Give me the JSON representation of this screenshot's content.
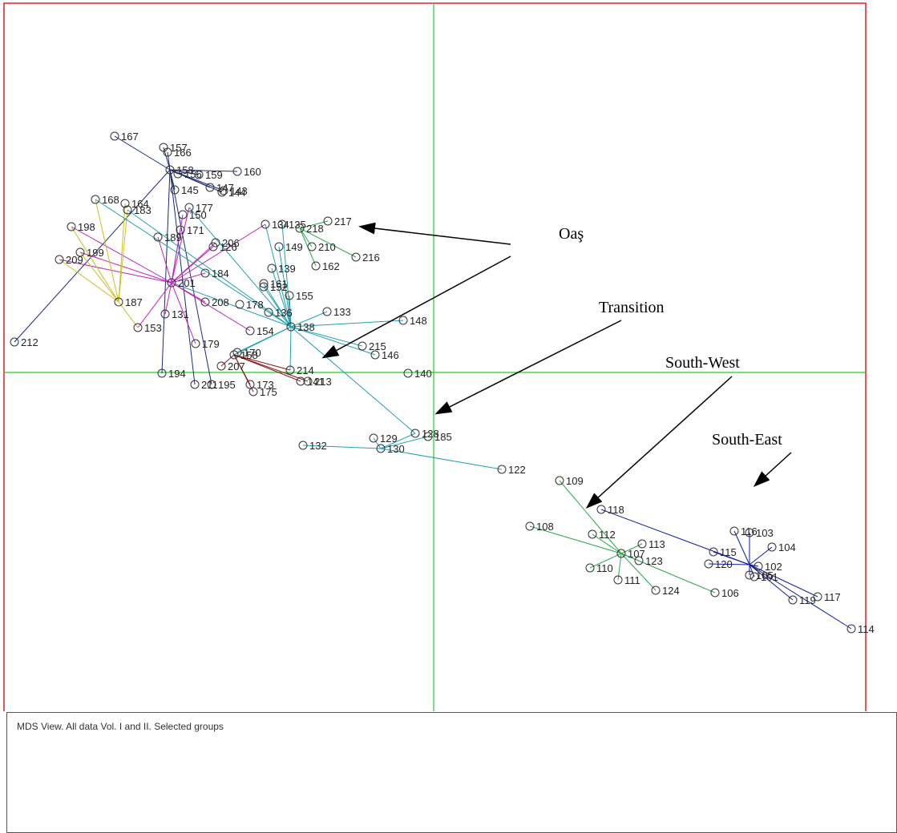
{
  "caption": "MDS View. All data Vol. I and II. Selected groups",
  "colors": {
    "frame": "#e02020",
    "axes": "#22cc22",
    "label": "#222222",
    "marker": "#333333"
  },
  "annotations": [
    {
      "text": "Oaş",
      "points_to": [
        "217",
        "214"
      ]
    },
    {
      "text": "Transition",
      "points_to": [
        "128"
      ]
    },
    {
      "text": "South-West",
      "points_to": [
        "109"
      ]
    },
    {
      "text": "South-East",
      "points_to": [
        "104"
      ]
    }
  ],
  "chart_data": {
    "type": "scatter",
    "title": "",
    "xlabel": "",
    "ylabel": "",
    "xlim": [
      -537,
      540
    ],
    "ylim": [
      -445,
      461
    ],
    "axes_lines": "x=0 and y=0 (green)",
    "grid": false,
    "points": [
      {
        "id": "167",
        "x": -398,
        "y": 295
      },
      {
        "id": "157",
        "x": -337,
        "y": 281
      },
      {
        "id": "166",
        "x": -332,
        "y": 275
      },
      {
        "id": "158",
        "x": -329,
        "y": 253
      },
      {
        "id": "156",
        "x": -319,
        "y": 248
      },
      {
        "id": "159",
        "x": -293,
        "y": 247
      },
      {
        "id": "160",
        "x": -245,
        "y": 251
      },
      {
        "id": "147",
        "x": -279,
        "y": 231
      },
      {
        "id": "143",
        "x": -262,
        "y": 227
      },
      {
        "id": "144",
        "x": -264,
        "y": 225
      },
      {
        "id": "145",
        "x": -323,
        "y": 228
      },
      {
        "id": "177",
        "x": -305,
        "y": 206
      },
      {
        "id": "150",
        "x": -313,
        "y": 197
      },
      {
        "id": "171",
        "x": -316,
        "y": 178
      },
      {
        "id": "168",
        "x": -422,
        "y": 216
      },
      {
        "id": "164",
        "x": -385,
        "y": 211
      },
      {
        "id": "183",
        "x": -382,
        "y": 203
      },
      {
        "id": "198",
        "x": -452,
        "y": 182
      },
      {
        "id": "199",
        "x": -441,
        "y": 150
      },
      {
        "id": "209",
        "x": -467,
        "y": 141
      },
      {
        "id": "189",
        "x": -344,
        "y": 169
      },
      {
        "id": "206",
        "x": -272,
        "y": 162
      },
      {
        "id": "126",
        "x": -275,
        "y": 157
      },
      {
        "id": "201",
        "x": -327,
        "y": 112
      },
      {
        "id": "184",
        "x": -285,
        "y": 124
      },
      {
        "id": "187",
        "x": -393,
        "y": 88
      },
      {
        "id": "131",
        "x": -335,
        "y": 73
      },
      {
        "id": "208",
        "x": -285,
        "y": 88
      },
      {
        "id": "178",
        "x": -242,
        "y": 85
      },
      {
        "id": "154",
        "x": -229,
        "y": 52
      },
      {
        "id": "153",
        "x": -369,
        "y": 56
      },
      {
        "id": "179",
        "x": -297,
        "y": 36
      },
      {
        "id": "170",
        "x": -245,
        "y": 25
      },
      {
        "id": "158b",
        "x": -249,
        "y": 22
      },
      {
        "id": "207",
        "x": -265,
        "y": 8
      },
      {
        "id": "212",
        "x": -523,
        "y": 38
      },
      {
        "id": "194",
        "x": -339,
        "y": -1
      },
      {
        "id": "211",
        "x": -298,
        "y": -15
      },
      {
        "id": "195",
        "x": -277,
        "y": -15
      },
      {
        "id": "173",
        "x": -229,
        "y": -15
      },
      {
        "id": "175",
        "x": -225,
        "y": -24
      },
      {
        "id": "214",
        "x": -179,
        "y": 3
      },
      {
        "id": "141",
        "x": -166,
        "y": -11
      },
      {
        "id": "213",
        "x": -157,
        "y": -11
      },
      {
        "id": "134",
        "x": -210,
        "y": 185
      },
      {
        "id": "135",
        "x": -189,
        "y": 185
      },
      {
        "id": "218",
        "x": -167,
        "y": 180
      },
      {
        "id": "217",
        "x": -132,
        "y": 189
      },
      {
        "id": "149",
        "x": -193,
        "y": 157
      },
      {
        "id": "210",
        "x": -152,
        "y": 157
      },
      {
        "id": "162",
        "x": -147,
        "y": 133
      },
      {
        "id": "216",
        "x": -97,
        "y": 144
      },
      {
        "id": "139",
        "x": -202,
        "y": 130
      },
      {
        "id": "161",
        "x": -212,
        "y": 111
      },
      {
        "id": "152",
        "x": -212,
        "y": 107
      },
      {
        "id": "155",
        "x": -180,
        "y": 96
      },
      {
        "id": "133",
        "x": -133,
        "y": 76
      },
      {
        "id": "136",
        "x": -206,
        "y": 75
      },
      {
        "id": "138",
        "x": -178,
        "y": 57
      },
      {
        "id": "148",
        "x": -38,
        "y": 65
      },
      {
        "id": "215",
        "x": -89,
        "y": 33
      },
      {
        "id": "146",
        "x": -73,
        "y": 22
      },
      {
        "id": "140",
        "x": -32,
        "y": -1
      },
      {
        "id": "128",
        "x": -23,
        "y": -76
      },
      {
        "id": "185",
        "x": -7,
        "y": -80
      },
      {
        "id": "132",
        "x": -163,
        "y": -91
      },
      {
        "id": "129",
        "x": -75,
        "y": -82
      },
      {
        "id": "130",
        "x": -66,
        "y": -95
      },
      {
        "id": "122",
        "x": 85,
        "y": -121
      },
      {
        "id": "109",
        "x": 157,
        "y": -135
      },
      {
        "id": "118",
        "x": 209,
        "y": -171
      },
      {
        "id": "108",
        "x": 120,
        "y": -192
      },
      {
        "id": "112",
        "x": 198,
        "y": -202
      },
      {
        "id": "113",
        "x": 260,
        "y": -214
      },
      {
        "id": "107",
        "x": 234,
        "y": -226
      },
      {
        "id": "123",
        "x": 256,
        "y": -235
      },
      {
        "id": "110",
        "x": 195,
        "y": -244
      },
      {
        "id": "111",
        "x": 230,
        "y": -259
      },
      {
        "id": "124",
        "x": 277,
        "y": -272
      },
      {
        "id": "106",
        "x": 351,
        "y": -275
      },
      {
        "id": "116",
        "x": 375,
        "y": -198
      },
      {
        "id": "103",
        "x": 394,
        "y": -200
      },
      {
        "id": "104",
        "x": 422,
        "y": -218
      },
      {
        "id": "115",
        "x": 349,
        "y": -224
      },
      {
        "id": "120",
        "x": 343,
        "y": -239
      },
      {
        "id": "102",
        "x": 405,
        "y": -242
      },
      {
        "id": "105",
        "x": 394,
        "y": -253
      },
      {
        "id": "101",
        "x": 400,
        "y": -255
      },
      {
        "id": "119",
        "x": 448,
        "y": -284
      },
      {
        "id": "117",
        "x": 479,
        "y": -280
      },
      {
        "id": "114",
        "x": 521,
        "y": -320
      }
    ]
  }
}
